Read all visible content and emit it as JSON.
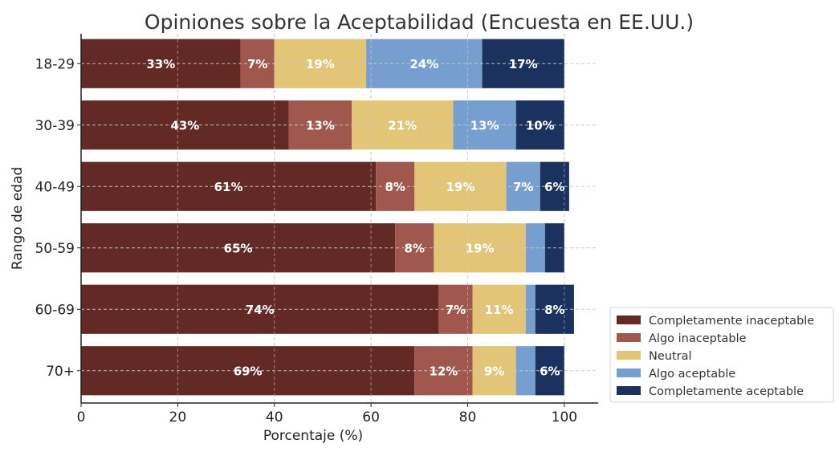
{
  "chart_data": {
    "type": "bar",
    "orientation": "horizontal",
    "stacked": true,
    "title": "Opiniones sobre la Aceptabilidad (Encuesta en EE.UU.)",
    "xlabel": "Porcentaje (%)",
    "ylabel": "Rango de edad",
    "xlim": [
      0,
      107
    ],
    "xticks": [
      0,
      20,
      40,
      60,
      80,
      100
    ],
    "grid": true,
    "legend_position": "bottom-right",
    "categories": [
      "18-29",
      "30-39",
      "40-49",
      "50-59",
      "60-69",
      "70+"
    ],
    "series": [
      {
        "name": "Completamente inaceptable",
        "color": "#632925",
        "values": [
          33,
          43,
          61,
          65,
          74,
          69
        ],
        "labels": [
          "33%",
          "43%",
          "61%",
          "65%",
          "74%",
          "69%"
        ]
      },
      {
        "name": "Algo inaceptable",
        "color": "#A0574D",
        "values": [
          7,
          13,
          8,
          8,
          7,
          12
        ],
        "labels": [
          "7%",
          "13%",
          "8%",
          "8%",
          "7%",
          "12%"
        ]
      },
      {
        "name": "Neutral",
        "color": "#E3C577",
        "values": [
          19,
          21,
          19,
          19,
          11,
          9
        ],
        "labels": [
          "19%",
          "21%",
          "19%",
          "19%",
          "11%",
          "9%"
        ]
      },
      {
        "name": "Algo aceptable",
        "color": "#769FD0",
        "values": [
          24,
          13,
          7,
          4,
          2,
          4
        ],
        "labels": [
          "24%",
          "13%",
          "7%",
          "",
          "",
          ""
        ]
      },
      {
        "name": "Completamente aceptable",
        "color": "#1C325E",
        "values": [
          17,
          10,
          6,
          4,
          8,
          6
        ],
        "labels": [
          "17%",
          "10%",
          "6%",
          "",
          "8%",
          "6%"
        ]
      }
    ]
  }
}
